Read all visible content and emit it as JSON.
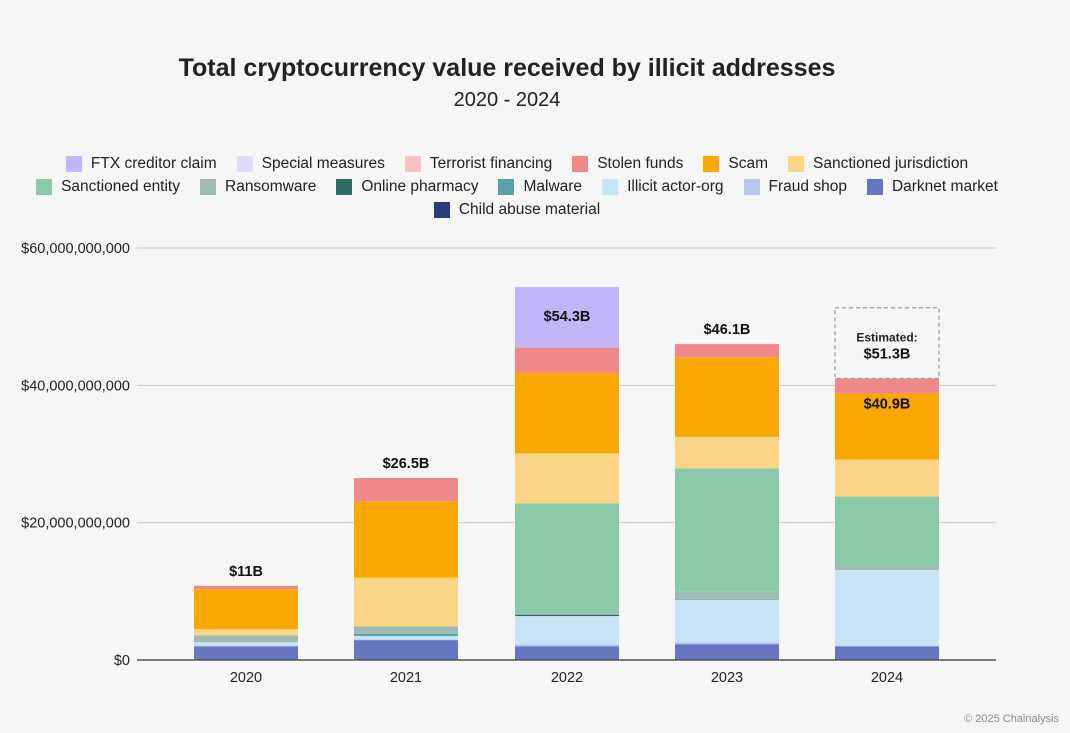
{
  "title": "Total cryptocurrency value received by illicit addresses",
  "subtitle": "2020 - 2024",
  "copyright": "© 2025 Chainalysis",
  "chart_data": {
    "type": "bar",
    "stacked": true,
    "categories": [
      "2020",
      "2021",
      "2022",
      "2023",
      "2024"
    ],
    "ylim": [
      0,
      60000000000
    ],
    "yticks": [
      {
        "value": 0,
        "label": "$0"
      },
      {
        "value": 20000000000,
        "label": "$20,000,000,000"
      },
      {
        "value": 40000000000,
        "label": "$40,000,000,000"
      },
      {
        "value": 60000000000,
        "label": "$60,000,000,000"
      }
    ],
    "grid": true,
    "legend_position": "top",
    "totals": [
      "$11B",
      "$26.5B",
      "$54.3B",
      "$46.1B",
      "$40.9B"
    ],
    "estimate": {
      "category": "2024",
      "label": "Estimated:",
      "value_label": "$51.3B",
      "value": 51300000000
    },
    "series": [
      {
        "name": "Child abuse material",
        "color": "#273d7a",
        "values": [
          0,
          0,
          0,
          0,
          0
        ]
      },
      {
        "name": "Darknet market",
        "color": "#6477bf",
        "values": [
          2000000000,
          2900000000,
          2000000000,
          2300000000,
          2000000000
        ]
      },
      {
        "name": "Fraud shop",
        "color": "#b6c8ee",
        "values": [
          100000000,
          100000000,
          300000000,
          300000000,
          100000000
        ]
      },
      {
        "name": "Illicit actor-org",
        "color": "#c8e5f6",
        "values": [
          500000000,
          500000000,
          4100000000,
          6200000000,
          11000000000
        ]
      },
      {
        "name": "Malware",
        "color": "#5c9ea9",
        "values": [
          0,
          300000000,
          0,
          100000000,
          0
        ]
      },
      {
        "name": "Online pharmacy",
        "color": "#2f6b63",
        "values": [
          0,
          0,
          200000000,
          0,
          0
        ]
      },
      {
        "name": "Ransomware",
        "color": "#9fbab1",
        "values": [
          1000000000,
          1100000000,
          200000000,
          1100000000,
          500000000
        ]
      },
      {
        "name": "Sanctioned entity",
        "color": "#89c9a8",
        "values": [
          0,
          0,
          16000000000,
          17900000000,
          10200000000
        ]
      },
      {
        "name": "Sanctioned jurisdiction",
        "color": "#fbd587",
        "values": [
          900000000,
          7100000000,
          7300000000,
          4600000000,
          5400000000
        ]
      },
      {
        "name": "Scam",
        "color": "#f8a800",
        "values": [
          5800000000,
          11100000000,
          11700000000,
          11600000000,
          9600000000
        ]
      },
      {
        "name": "Stolen funds",
        "color": "#ef8888",
        "values": [
          500000000,
          3400000000,
          3700000000,
          1900000000,
          2200000000
        ]
      },
      {
        "name": "Terrorist financing",
        "color": "#f7c2bf",
        "values": [
          0,
          0,
          0,
          0,
          0
        ]
      },
      {
        "name": "Special measures",
        "color": "#e0dbfb",
        "values": [
          0,
          0,
          0,
          0,
          0
        ]
      },
      {
        "name": "FTX creditor claim",
        "color": "#c2b5f7",
        "values": [
          0,
          0,
          8800000000,
          0,
          0
        ]
      }
    ]
  }
}
